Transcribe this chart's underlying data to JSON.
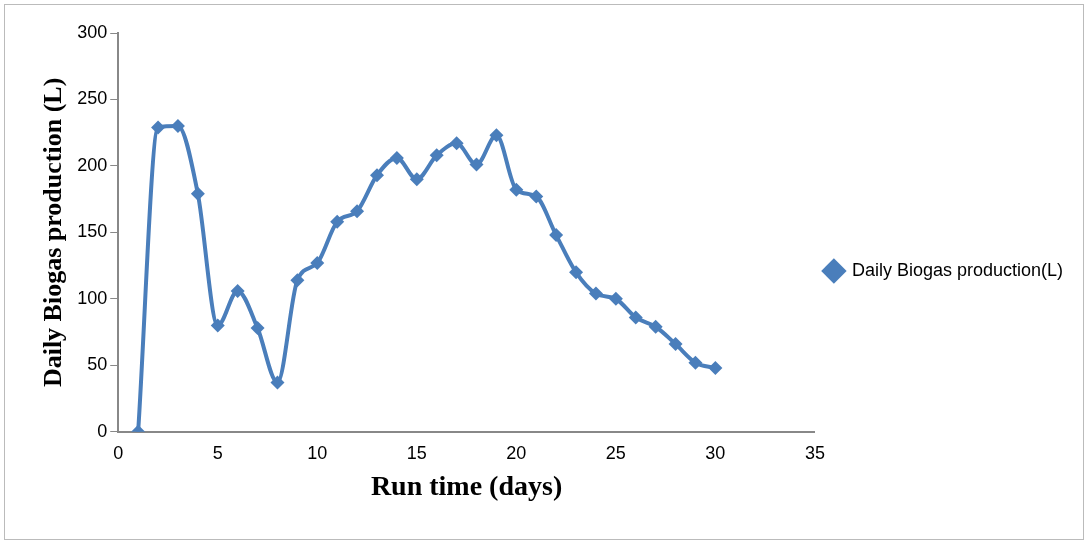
{
  "chart_data": {
    "type": "line",
    "xlabel": "Run time (days)",
    "ylabel": "Daily Biogas production (L)",
    "x": [
      1,
      2,
      3,
      4,
      5,
      6,
      7,
      8,
      9,
      10,
      11,
      12,
      13,
      14,
      15,
      16,
      17,
      18,
      19,
      20,
      21,
      22,
      23,
      24,
      25,
      26,
      27,
      28,
      29,
      30
    ],
    "series": [
      {
        "name": "Daily Biogas production(L)",
        "color": "#4a7ebb",
        "values": [
          0,
          229,
          230,
          179,
          80,
          106,
          78,
          37,
          114,
          127,
          158,
          166,
          193,
          206,
          190,
          208,
          217,
          201,
          223,
          182,
          177,
          148,
          120,
          104,
          100,
          86,
          79,
          66,
          52,
          48
        ]
      }
    ],
    "xlim": [
      0,
      35
    ],
    "xticks": [
      0,
      5,
      10,
      15,
      20,
      25,
      30,
      35
    ],
    "ylim": [
      0,
      300
    ],
    "yticks": [
      0,
      50,
      100,
      150,
      200,
      250,
      300
    ],
    "grid": false,
    "legend": "right",
    "marker": "diamond",
    "line_style": "solid"
  }
}
